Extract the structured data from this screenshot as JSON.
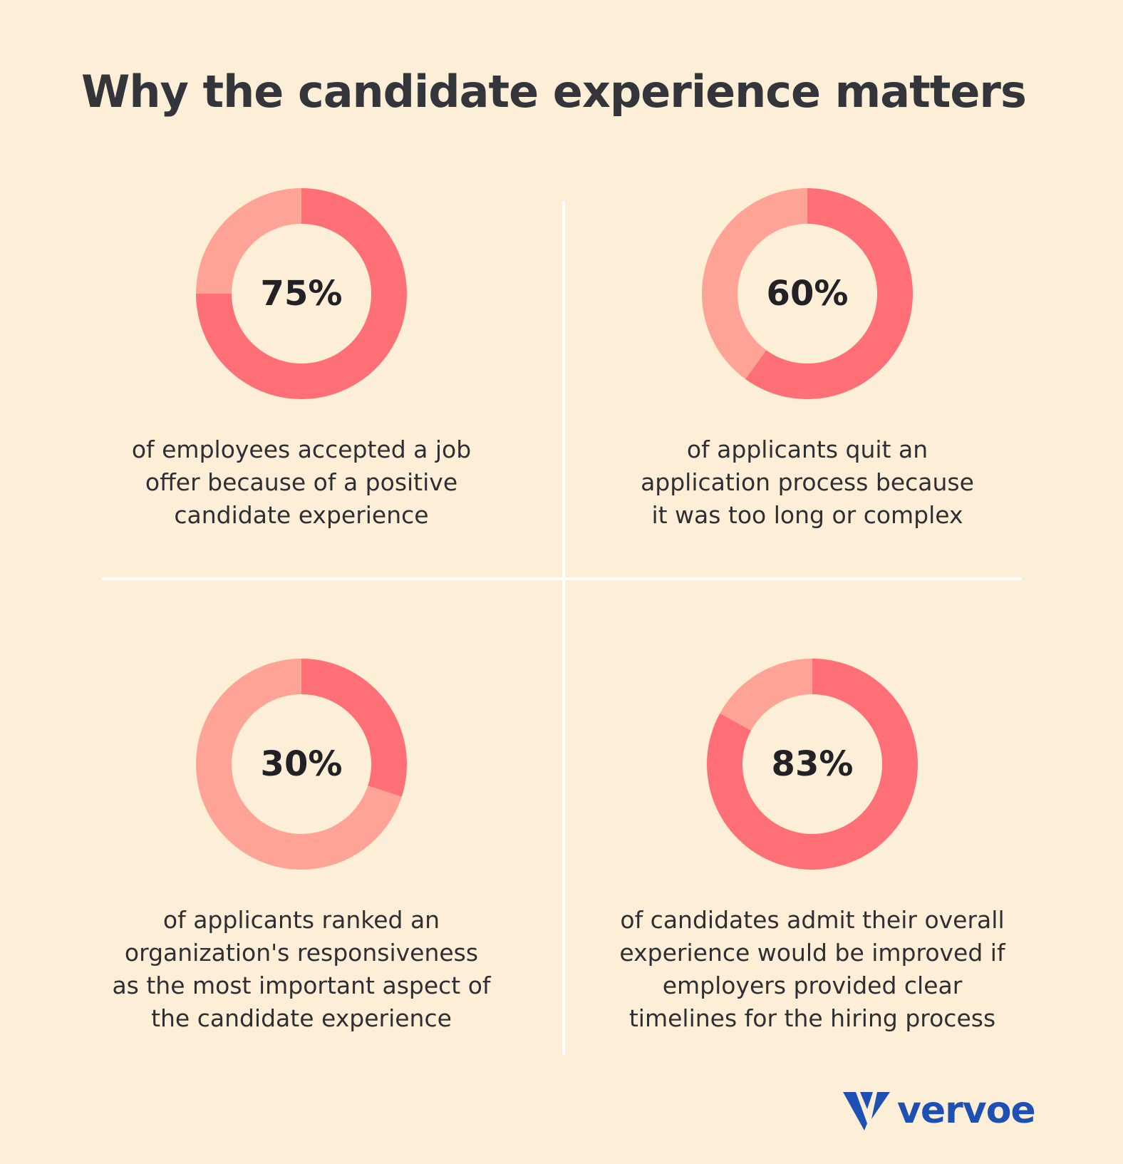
{
  "title": "Why the candidate experience matters",
  "colors": {
    "background": "#FDEFD7",
    "primary_segment": "#FF6F76",
    "remaining_segment": "#FFA396",
    "divider": "#FFFFFF",
    "brand": "#1E4FB3"
  },
  "chart_data": [
    {
      "type": "pie",
      "value": 75,
      "remainder": 25,
      "label": "75%",
      "caption": "of employees accepted a job\noffer because of a positive\ncandidate experience"
    },
    {
      "type": "pie",
      "value": 60,
      "remainder": 40,
      "label": "60%",
      "caption": "of applicants quit an\napplication process because\nit was too long or complex"
    },
    {
      "type": "pie",
      "value": 30,
      "remainder": 70,
      "label": "30%",
      "caption": "of applicants ranked an\norganization's responsiveness\nas the most important aspect of\nthe candidate experience"
    },
    {
      "type": "pie",
      "value": 83,
      "remainder": 17,
      "label": "83%",
      "caption": "of candidates admit their overall\nexperience would be improved if\nemployers provided clear\ntimelines for the hiring process"
    }
  ],
  "logo": {
    "text": "vervoe",
    "icon": "vervoe-v-mark-icon"
  }
}
